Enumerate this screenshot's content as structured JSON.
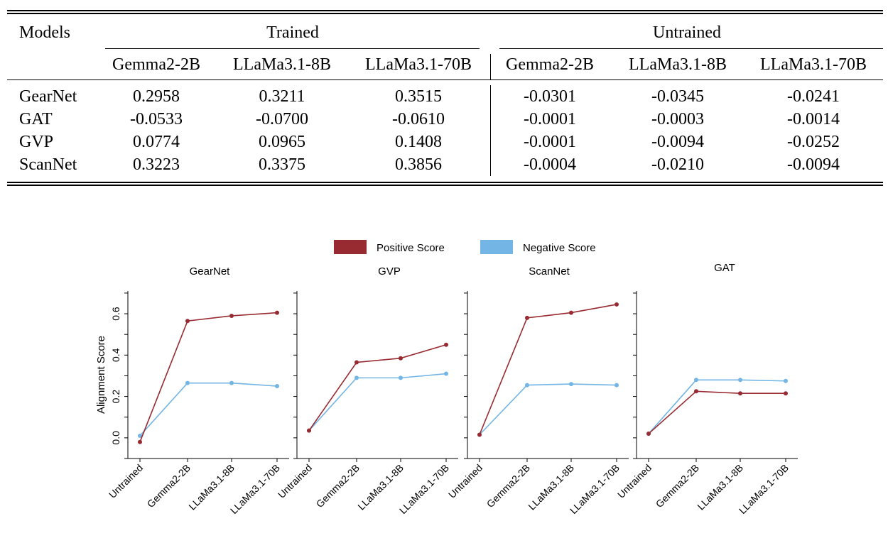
{
  "table": {
    "header": {
      "models_label": "Models",
      "group_trained": "Trained",
      "group_untrained": "Untrained",
      "columns": [
        "Gemma2-2B",
        "LLaMa3.1-8B",
        "LLaMa3.1-70B",
        "Gemma2-2B",
        "LLaMa3.1-8B",
        "LLaMa3.1-70B"
      ]
    },
    "rows": [
      {
        "model": "GearNet",
        "values": [
          "0.2958",
          "0.3211",
          "0.3515",
          "-0.0301",
          "-0.0345",
          "-0.0241"
        ]
      },
      {
        "model": "GAT",
        "values": [
          "-0.0533",
          "-0.0700",
          "-0.0610",
          "-0.0001",
          "-0.0003",
          "-0.0014"
        ]
      },
      {
        "model": "GVP",
        "values": [
          "0.0774",
          "0.0965",
          "0.1408",
          "-0.0001",
          "-0.0094",
          "-0.0252"
        ]
      },
      {
        "model": "ScanNet",
        "values": [
          "0.3223",
          "0.3375",
          "0.3856",
          "-0.0004",
          "-0.0210",
          "-0.0094"
        ]
      }
    ]
  },
  "chart_data": {
    "type": "line",
    "ylabel": "Alignment Score",
    "ylim": [
      -0.1,
      0.71
    ],
    "yticks": [
      0.0,
      0.2,
      0.4,
      0.6
    ],
    "ytick_labels": [
      "0.0",
      "0.2",
      "0.4",
      "0.6"
    ],
    "legend": {
      "placement": "top-center",
      "entries": [
        {
          "label": "Positive Score",
          "color": "#982a31"
        },
        {
          "label": "Negative Score",
          "color": "#73b5e4"
        }
      ]
    },
    "categories": [
      "Untrained",
      "Gemma2-2B",
      "LLaMa3.1-8B",
      "LLaMa3.1-70B"
    ],
    "panels": [
      {
        "title": "GearNet",
        "positive": [
          -0.02,
          0.565,
          0.59,
          0.605
        ],
        "negative": [
          0.01,
          0.265,
          0.265,
          0.25
        ]
      },
      {
        "title": "GVP",
        "positive": [
          0.035,
          0.365,
          0.385,
          0.45
        ],
        "negative": [
          0.035,
          0.29,
          0.29,
          0.31
        ]
      },
      {
        "title": "ScanNet",
        "positive": [
          0.015,
          0.58,
          0.605,
          0.645
        ],
        "negative": [
          0.015,
          0.255,
          0.26,
          0.255
        ]
      },
      {
        "title": "GAT",
        "positive": [
          0.02,
          0.225,
          0.215,
          0.215
        ],
        "negative": [
          0.02,
          0.28,
          0.28,
          0.275
        ]
      }
    ]
  }
}
